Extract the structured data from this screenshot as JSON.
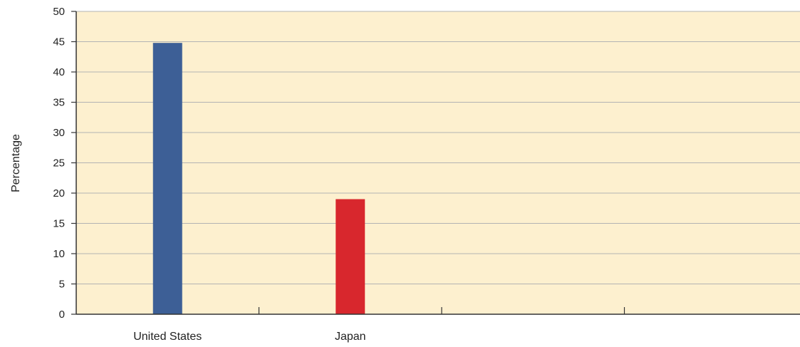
{
  "chart_data": {
    "type": "bar",
    "categories": [
      "United States",
      "Japan",
      "",
      ""
    ],
    "values": [
      44.8,
      19.0,
      null,
      null
    ],
    "bar_colors": [
      "#3d5f96",
      "#d8272d"
    ],
    "ylabel": "Percentage",
    "xlabel": "",
    "ylim": [
      0,
      50
    ],
    "yticks": [
      0,
      5,
      10,
      15,
      20,
      25,
      30,
      35,
      40,
      45,
      50
    ],
    "grid": true,
    "legend": "none",
    "colors": {
      "plot_background": "#fdf0cf",
      "gridline": "#b3b3b3",
      "axis": "#333333"
    }
  }
}
